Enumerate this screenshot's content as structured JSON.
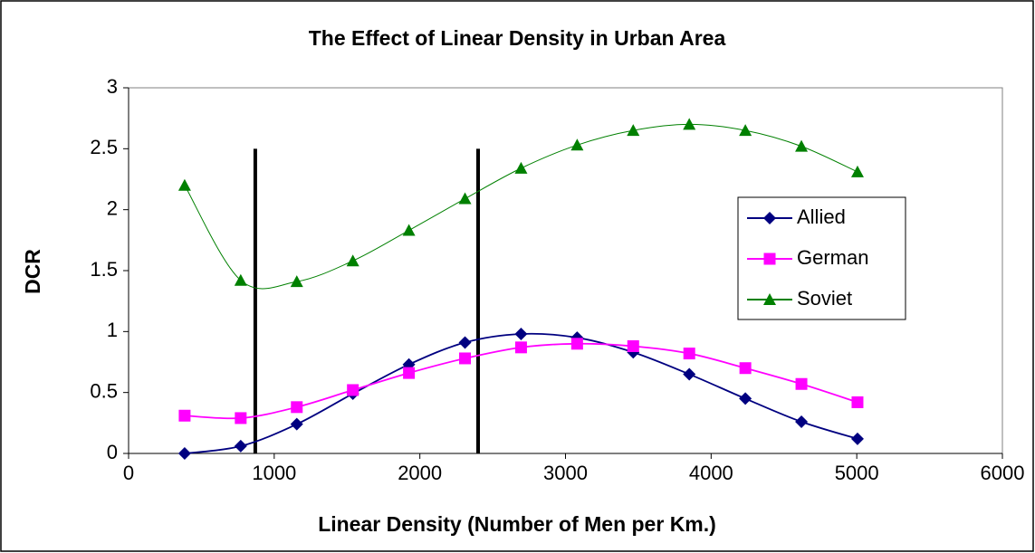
{
  "chart_data": {
    "type": "line",
    "title": "The Effect of Linear Density in Urban Area",
    "x_label": "Linear Density (Number of Men per Km.)",
    "y_label": "DCR",
    "x": [
      385,
      770,
      1155,
      1540,
      1925,
      2310,
      2695,
      3080,
      3465,
      3850,
      4235,
      4620,
      5005
    ],
    "series": [
      {
        "name": "Allied",
        "color": "#000080",
        "marker": "diamond",
        "values": [
          0,
          0.06,
          0.24,
          0.49,
          0.73,
          0.91,
          0.98,
          0.95,
          0.83,
          0.65,
          0.45,
          0.26,
          0.12
        ]
      },
      {
        "name": "German",
        "color": "#ff00ff",
        "marker": "square",
        "values": [
          0.31,
          0.29,
          0.38,
          0.52,
          0.66,
          0.78,
          0.87,
          0.9,
          0.88,
          0.82,
          0.7,
          0.57,
          0.42
        ]
      },
      {
        "name": "Soviet",
        "color": "#008000",
        "marker": "triangle",
        "values": [
          2.2,
          1.42,
          1.41,
          1.58,
          1.83,
          2.09,
          2.34,
          2.53,
          2.65,
          2.7,
          2.65,
          2.52,
          2.31
        ]
      }
    ],
    "vlines": [
      {
        "x": 870,
        "ymin": 0,
        "ymax": 2.5
      },
      {
        "x": 2400,
        "ymin": 0,
        "ymax": 2.5
      }
    ],
    "xlim": [
      0,
      6000
    ],
    "xticks": [
      0,
      1000,
      2000,
      3000,
      4000,
      5000,
      6000
    ],
    "ylim": [
      0,
      3
    ],
    "yticks": [
      0,
      0.5,
      1,
      1.5,
      2,
      2.5,
      3
    ],
    "smooth": true,
    "legend": "right"
  }
}
